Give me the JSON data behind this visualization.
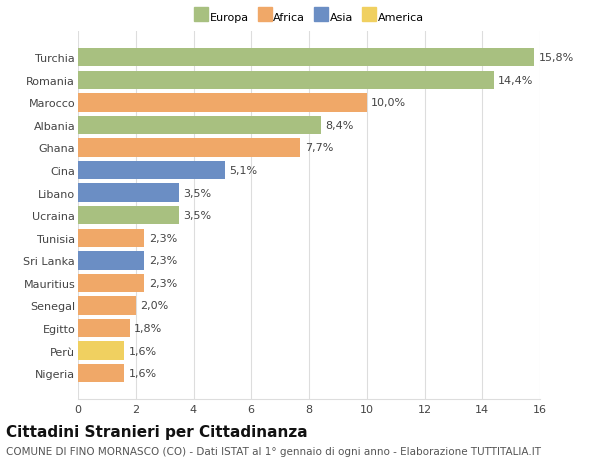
{
  "categories": [
    "Nigeria",
    "Perù",
    "Egitto",
    "Senegal",
    "Mauritius",
    "Sri Lanka",
    "Tunisia",
    "Ucraina",
    "Libano",
    "Cina",
    "Ghana",
    "Albania",
    "Marocco",
    "Romania",
    "Turchia"
  ],
  "values": [
    1.6,
    1.6,
    1.8,
    2.0,
    2.3,
    2.3,
    2.3,
    3.5,
    3.5,
    5.1,
    7.7,
    8.4,
    10.0,
    14.4,
    15.8
  ],
  "continents": [
    "Africa",
    "America",
    "Africa",
    "Africa",
    "Africa",
    "Asia",
    "Africa",
    "Europa",
    "Asia",
    "Asia",
    "Africa",
    "Europa",
    "Africa",
    "Europa",
    "Europa"
  ],
  "colors": {
    "Europa": "#a8c080",
    "Africa": "#f0a868",
    "Asia": "#6b8ec4",
    "America": "#f0d060"
  },
  "legend_order": [
    "Europa",
    "Africa",
    "Asia",
    "America"
  ],
  "xlim": [
    0,
    16
  ],
  "xticks": [
    0,
    2,
    4,
    6,
    8,
    10,
    12,
    14,
    16
  ],
  "title": "Cittadini Stranieri per Cittadinanza",
  "subtitle": "COMUNE DI FINO MORNASCO (CO) - Dati ISTAT al 1° gennaio di ogni anno - Elaborazione TUTTITALIA.IT",
  "title_fontsize": 11,
  "subtitle_fontsize": 7.5,
  "label_fontsize": 8,
  "tick_fontsize": 8,
  "bar_height": 0.82,
  "background_color": "#ffffff",
  "grid_color": "#dddddd"
}
